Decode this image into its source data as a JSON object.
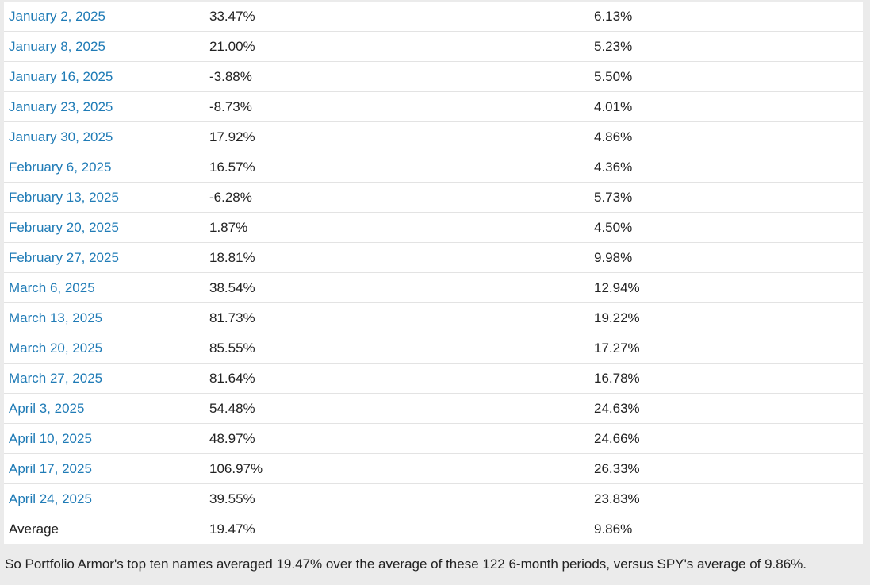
{
  "table": {
    "rows": [
      {
        "date": "January 2, 2025",
        "top_ten": "33.47%",
        "spy": "6.13%"
      },
      {
        "date": "January 8, 2025",
        "top_ten": "21.00%",
        "spy": "5.23%"
      },
      {
        "date": "January 16, 2025",
        "top_ten": "-3.88%",
        "spy": "5.50%"
      },
      {
        "date": "January 23, 2025",
        "top_ten": "-8.73%",
        "spy": "4.01%"
      },
      {
        "date": "January 30, 2025",
        "top_ten": "17.92%",
        "spy": "4.86%"
      },
      {
        "date": "February 6, 2025",
        "top_ten": "16.57%",
        "spy": "4.36%"
      },
      {
        "date": "February 13, 2025",
        "top_ten": "-6.28%",
        "spy": "5.73%"
      },
      {
        "date": "February 20, 2025",
        "top_ten": "1.87%",
        "spy": "4.50%"
      },
      {
        "date": "February 27, 2025",
        "top_ten": "18.81%",
        "spy": "9.98%"
      },
      {
        "date": "March 6, 2025",
        "top_ten": "38.54%",
        "spy": "12.94%"
      },
      {
        "date": "March 13, 2025",
        "top_ten": "81.73%",
        "spy": "19.22%"
      },
      {
        "date": "March 20, 2025",
        "top_ten": "85.55%",
        "spy": "17.27%"
      },
      {
        "date": "March 27, 2025",
        "top_ten": "81.64%",
        "spy": "16.78%"
      },
      {
        "date": "April 3, 2025",
        "top_ten": "54.48%",
        "spy": "24.63%"
      },
      {
        "date": "April 10, 2025",
        "top_ten": "48.97%",
        "spy": "24.66%"
      },
      {
        "date": "April 17, 2025",
        "top_ten": "106.97%",
        "spy": "26.33%"
      },
      {
        "date": "April 24, 2025",
        "top_ten": "39.55%",
        "spy": "23.83%"
      }
    ],
    "average": {
      "label": "Average",
      "top_ten": "19.47%",
      "spy": "9.86%"
    }
  },
  "summary_text": "So Portfolio Armor's top ten names averaged 19.47% over the average of these 122 6-month periods, versus SPY's average of 9.86%.",
  "colors": {
    "link": "#1f7bb6",
    "text": "#222222",
    "page_background": "#ebebeb",
    "table_background": "#ffffff",
    "row_divider": "#e3e3e3"
  }
}
